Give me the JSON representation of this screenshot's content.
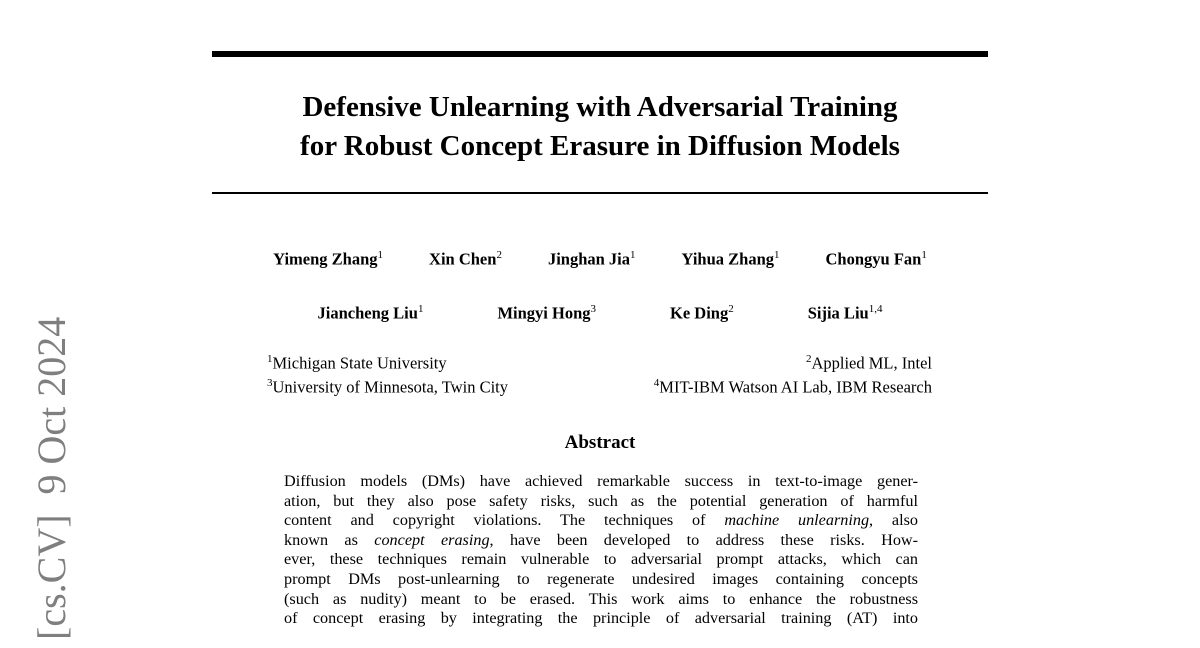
{
  "arxiv_stamp": {
    "category": "[cs.CV]",
    "date": "9 Oct 2024"
  },
  "title": {
    "line1": "Defensive Unlearning with Adversarial Training",
    "line2": "for Robust Concept Erasure in Diffusion Models"
  },
  "authors": {
    "row1": [
      {
        "name": "Yimeng Zhang",
        "aff": "1"
      },
      {
        "name": "Xin Chen",
        "aff": "2"
      },
      {
        "name": "Jinghan Jia",
        "aff": "1"
      },
      {
        "name": "Yihua Zhang",
        "aff": "1"
      },
      {
        "name": "Chongyu Fan",
        "aff": "1"
      }
    ],
    "row2": [
      {
        "name": "Jiancheng Liu",
        "aff": "1"
      },
      {
        "name": "Mingyi Hong",
        "aff": "3"
      },
      {
        "name": "Ke Ding",
        "aff": "2"
      },
      {
        "name": "Sijia Liu",
        "aff": "1,4"
      }
    ]
  },
  "affiliations": [
    {
      "num": "1",
      "name": "Michigan State University"
    },
    {
      "num": "2",
      "name": "Applied ML, Intel"
    },
    {
      "num": "3",
      "name": "University of Minnesota, Twin City"
    },
    {
      "num": "4",
      "name": "MIT-IBM Watson AI Lab, IBM Research"
    }
  ],
  "abstract": {
    "heading": "Abstract",
    "lines": [
      "Diffusion models (DMs) have achieved remarkable success in text-to-image gener-",
      "ation, but they also pose safety risks, such as the potential generation of harmful",
      "content and copyright violations.  The techniques of |machine unlearning|, also",
      "known as |concept erasing|, have been developed to address these risks.  How-",
      "ever, these techniques remain vulnerable to adversarial prompt attacks, which can",
      "prompt DMs post-unlearning to regenerate undesired images containing concepts",
      "(such as nudity) meant to be erased.  This work aims to enhance the robustness",
      "of concept erasing by integrating the principle of adversarial training (AT) into"
    ]
  }
}
